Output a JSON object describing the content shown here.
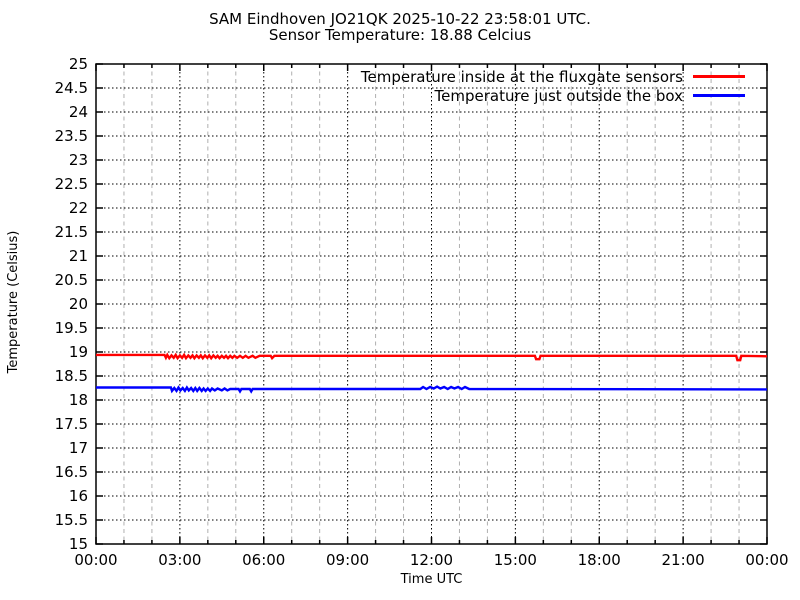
{
  "chart_data": {
    "type": "line",
    "title": "SAM Eindhoven JO21QK 2025-10-22 23:58:01 UTC.",
    "subtitle": "Sensor Temperature: 18.88 Celcius",
    "xlabel": "Time UTC",
    "ylabel": "Temperature (Celsius)",
    "xlim": [
      0,
      24
    ],
    "ylim": [
      15,
      25
    ],
    "grid": {
      "major_color": "#000000",
      "minor_color": "#b0b0b0",
      "major_dash": "1.5,2.5",
      "minor_dash": "4,3.5"
    },
    "legend_position": "top-right-inside",
    "xticks": {
      "major_hours": [
        0,
        3,
        6,
        9,
        12,
        15,
        18,
        21,
        24
      ],
      "labels": [
        "00:00",
        "03:00",
        "06:00",
        "09:00",
        "12:00",
        "15:00",
        "18:00",
        "21:00",
        "00:00"
      ],
      "minor_step_hours": 1
    },
    "yticks": {
      "values": [
        15,
        15.5,
        16,
        16.5,
        17,
        17.5,
        18,
        18.5,
        19,
        19.5,
        20,
        20.5,
        21,
        21.5,
        22,
        22.5,
        23,
        23.5,
        24,
        24.5,
        25
      ],
      "labels": [
        "15",
        "15.5",
        "16",
        "16.5",
        "17",
        "17.5",
        "18",
        "18.5",
        "19",
        "19.5",
        "20",
        "20.5",
        "21",
        "21.5",
        "22",
        "22.5",
        "23",
        "23.5",
        "24",
        "24.5",
        "25"
      ]
    },
    "series": [
      {
        "name": "Temperature inside at the fluxgate sensors",
        "color": "#ff0000",
        "points": [
          [
            0,
            18.94
          ],
          [
            2.45,
            18.94
          ],
          [
            2.5,
            18.88
          ],
          [
            2.55,
            18.94
          ],
          [
            2.62,
            18.87
          ],
          [
            2.7,
            18.93
          ],
          [
            2.78,
            18.88
          ],
          [
            2.85,
            18.94
          ],
          [
            2.92,
            18.87
          ],
          [
            3.0,
            18.93
          ],
          [
            3.08,
            18.88
          ],
          [
            3.15,
            18.94
          ],
          [
            3.22,
            18.87
          ],
          [
            3.3,
            18.93
          ],
          [
            3.38,
            18.88
          ],
          [
            3.45,
            18.93
          ],
          [
            3.52,
            18.87
          ],
          [
            3.6,
            18.93
          ],
          [
            3.68,
            18.88
          ],
          [
            3.75,
            18.93
          ],
          [
            3.82,
            18.87
          ],
          [
            3.9,
            18.93
          ],
          [
            3.98,
            18.88
          ],
          [
            4.05,
            18.93
          ],
          [
            4.12,
            18.87
          ],
          [
            4.2,
            18.93
          ],
          [
            4.28,
            18.88
          ],
          [
            4.35,
            18.92
          ],
          [
            4.42,
            18.87
          ],
          [
            4.5,
            18.92
          ],
          [
            4.58,
            18.88
          ],
          [
            4.65,
            18.92
          ],
          [
            4.72,
            18.87
          ],
          [
            4.8,
            18.92
          ],
          [
            4.88,
            18.88
          ],
          [
            4.95,
            18.92
          ],
          [
            5.05,
            18.88
          ],
          [
            5.15,
            18.92
          ],
          [
            5.25,
            18.88
          ],
          [
            5.35,
            18.92
          ],
          [
            5.45,
            18.88
          ],
          [
            5.6,
            18.92
          ],
          [
            5.7,
            18.88
          ],
          [
            5.85,
            18.92
          ],
          [
            6.25,
            18.92
          ],
          [
            6.3,
            18.87
          ],
          [
            6.38,
            18.92
          ],
          [
            15.7,
            18.92
          ],
          [
            15.74,
            18.85
          ],
          [
            15.86,
            18.85
          ],
          [
            15.9,
            18.92
          ],
          [
            22.9,
            18.92
          ],
          [
            22.94,
            18.83
          ],
          [
            23.04,
            18.83
          ],
          [
            23.08,
            18.92
          ],
          [
            24,
            18.91
          ]
        ]
      },
      {
        "name": "Temperature just outside the box",
        "color": "#0000ff",
        "points": [
          [
            0,
            18.26
          ],
          [
            2.68,
            18.26
          ],
          [
            2.72,
            18.19
          ],
          [
            2.8,
            18.25
          ],
          [
            2.88,
            18.19
          ],
          [
            2.95,
            18.26
          ],
          [
            3.02,
            18.2
          ],
          [
            3.1,
            18.25
          ],
          [
            3.18,
            18.19
          ],
          [
            3.25,
            18.26
          ],
          [
            3.32,
            18.2
          ],
          [
            3.4,
            18.25
          ],
          [
            3.48,
            18.19
          ],
          [
            3.55,
            18.25
          ],
          [
            3.62,
            18.19
          ],
          [
            3.7,
            18.25
          ],
          [
            3.78,
            18.19
          ],
          [
            3.85,
            18.24
          ],
          [
            3.92,
            18.19
          ],
          [
            4.0,
            18.24
          ],
          [
            4.08,
            18.19
          ],
          [
            4.15,
            18.24
          ],
          [
            4.25,
            18.2
          ],
          [
            4.35,
            18.24
          ],
          [
            4.5,
            18.2
          ],
          [
            4.6,
            18.24
          ],
          [
            4.7,
            18.2
          ],
          [
            4.8,
            18.23
          ],
          [
            5.1,
            18.23
          ],
          [
            5.15,
            18.18
          ],
          [
            5.2,
            18.23
          ],
          [
            5.5,
            18.23
          ],
          [
            5.55,
            18.18
          ],
          [
            5.6,
            18.23
          ],
          [
            11.6,
            18.23
          ],
          [
            11.7,
            18.27
          ],
          [
            11.82,
            18.23
          ],
          [
            11.95,
            18.27
          ],
          [
            12.08,
            18.24
          ],
          [
            12.2,
            18.28
          ],
          [
            12.32,
            18.24
          ],
          [
            12.45,
            18.27
          ],
          [
            12.58,
            18.23
          ],
          [
            12.7,
            18.27
          ],
          [
            12.82,
            18.24
          ],
          [
            12.95,
            18.27
          ],
          [
            13.08,
            18.23
          ],
          [
            13.2,
            18.27
          ],
          [
            13.35,
            18.23
          ],
          [
            24,
            18.22
          ]
        ]
      }
    ]
  }
}
